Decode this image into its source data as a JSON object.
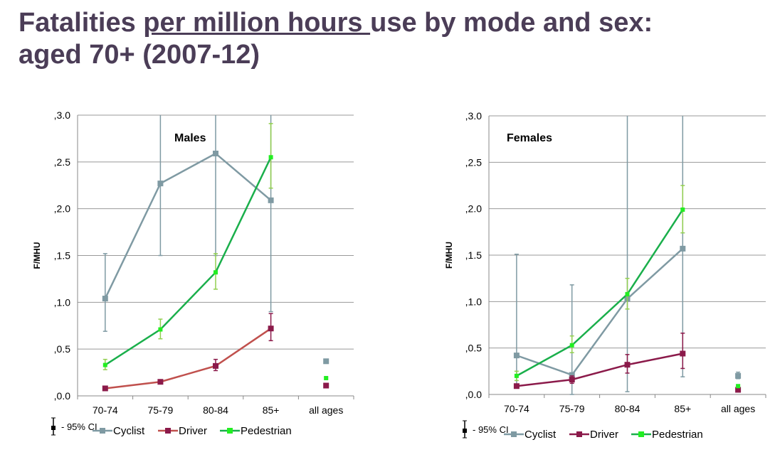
{
  "title": {
    "part1": "Fatalities ",
    "underlined": "per million hours ",
    "part2": "use by mode and sex: aged 70+ (2007-12)"
  },
  "colors": {
    "Cyclist": "#7f9aa3",
    "Driver": "#8b1a4a",
    "DriverLineMales": "#c0504d",
    "Pedestrian": "#1aaf4b",
    "PedestrianMarker": "#22ee22",
    "PedestrianError": "#92cf50",
    "title": "#4b3d57"
  },
  "chart_data": [
    {
      "type": "line",
      "title": "Males",
      "ylabel": "F/MHU",
      "ylim": [
        0,
        3
      ],
      "yticks": [
        ",0.0",
        ",0.5",
        ",1.0",
        ",1.5",
        ",2.0",
        ",2.5",
        ",3.0"
      ],
      "categories": [
        "70-74",
        "75-79",
        "80-84",
        "85+",
        "all ages"
      ],
      "grid": true,
      "legend": "bottom",
      "ci_note": "- 95% CI",
      "series": [
        {
          "name": "Cyclist",
          "values": [
            1.04,
            2.27,
            2.59,
            2.09,
            0.37
          ],
          "ci_low": [
            0.69,
            1.5,
            1.5,
            0.9,
            0.35
          ],
          "ci_high": [
            1.52,
            3.0,
            3.0,
            3.0,
            0.38
          ]
        },
        {
          "name": "Driver",
          "values": [
            0.08,
            0.15,
            0.32,
            0.72,
            0.11
          ],
          "ci_low": [
            0.07,
            0.13,
            0.27,
            0.59,
            0.1
          ],
          "ci_high": [
            0.09,
            0.17,
            0.39,
            0.88,
            0.12
          ]
        },
        {
          "name": "Pedestrian",
          "values": [
            0.33,
            0.71,
            1.32,
            2.55,
            0.19
          ],
          "ci_low": [
            0.28,
            0.61,
            1.14,
            2.22,
            0.18
          ],
          "ci_high": [
            0.39,
            0.82,
            1.52,
            2.91,
            0.2
          ]
        }
      ]
    },
    {
      "type": "line",
      "title": "Females",
      "ylabel": "F/MHU",
      "ylim": [
        0,
        3
      ],
      "yticks": [
        ",0.0",
        ",0.5",
        ",1.0",
        ",1.5",
        ",2.0",
        ",2.5",
        ",3.0"
      ],
      "categories": [
        "70-74",
        "75-79",
        "80-84",
        "85+",
        "all ages"
      ],
      "grid": true,
      "legend": "bottom",
      "ci_note": "- 95% CI",
      "series": [
        {
          "name": "Cyclist",
          "values": [
            0.42,
            0.21,
            1.03,
            1.57,
            0.2
          ],
          "ci_low": [
            0.07,
            0.0,
            0.03,
            0.19,
            0.17
          ],
          "ci_high": [
            1.51,
            1.18,
            3.0,
            3.0,
            0.24
          ]
        },
        {
          "name": "Driver",
          "values": [
            0.09,
            0.16,
            0.32,
            0.44,
            0.05
          ],
          "ci_low": [
            0.07,
            0.12,
            0.23,
            0.28,
            0.04
          ],
          "ci_high": [
            0.11,
            0.2,
            0.43,
            0.66,
            0.06
          ]
        },
        {
          "name": "Pedestrian",
          "values": [
            0.2,
            0.53,
            1.08,
            1.99,
            0.09
          ],
          "ci_low": [
            0.15,
            0.45,
            0.92,
            1.74,
            0.08
          ],
          "ci_high": [
            0.25,
            0.63,
            1.25,
            2.25,
            0.1
          ]
        }
      ]
    }
  ]
}
